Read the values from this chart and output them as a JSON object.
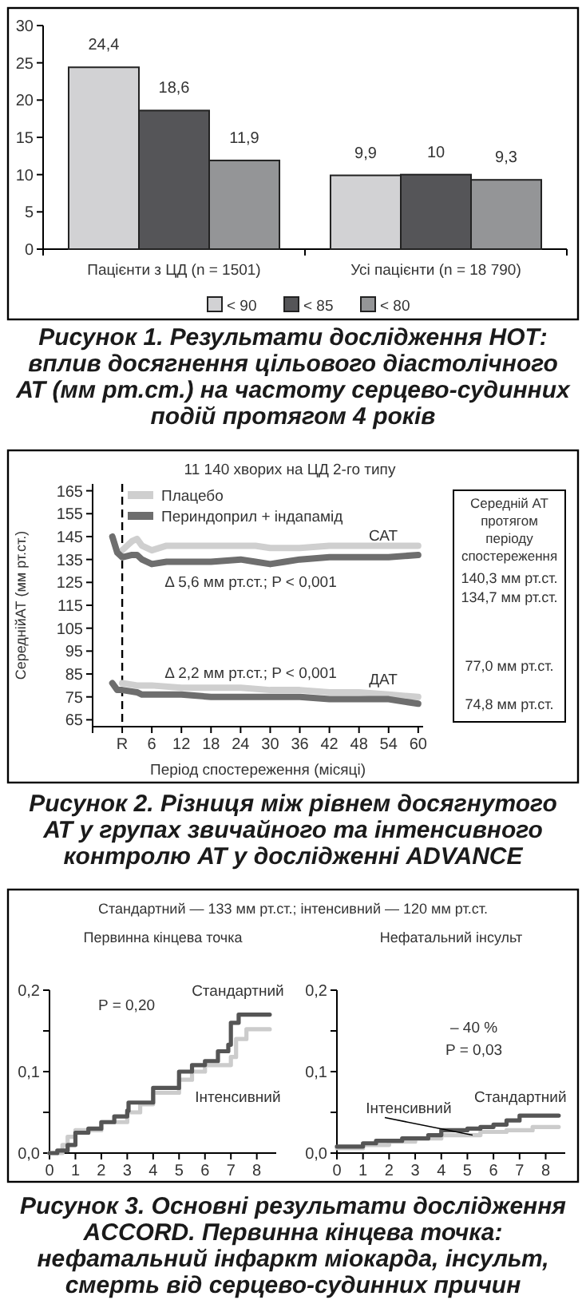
{
  "chart_data": [
    {
      "type": "bar",
      "title": "Рисунок 1. Результати дослідження НОТ: вплив досягнення цільового діастолічного АТ (мм рт.ст.) на частоту серцево-судинних подій протягом 4 років",
      "categories": [
        "Пацієнти з ЦД (n = 1501)",
        "Усі пацієнти (n = 18 790)"
      ],
      "series": [
        {
          "name": "< 90",
          "color": "#d2d2d4",
          "values": [
            24.4,
            9.9
          ],
          "value_labels": [
            "24,4",
            "9,9"
          ]
        },
        {
          "name": "< 85",
          "color": "#555558",
          "values": [
            18.6,
            10
          ],
          "value_labels": [
            "18,6",
            "10"
          ]
        },
        {
          "name": "< 80",
          "color": "#949597",
          "values": [
            11.9,
            9.3
          ],
          "value_labels": [
            "11,9",
            "9,3"
          ]
        }
      ],
      "ylim": [
        0,
        30
      ],
      "yticks": [
        0,
        5,
        10,
        15,
        20,
        25,
        30
      ],
      "legend": "bottom"
    },
    {
      "type": "line",
      "title": "Рисунок 2. Різниця між рівнем досягнутого АТ у групах звичайного та інтенсивного контролю АТ у дослідженні ADVANCE",
      "subtitle": "11 140 хворих на ЦД 2-го типу",
      "xlabel": "Період спостереження (місяці)",
      "ylabel": "СереднійАТ (мм рт.ст.)",
      "series": [
        {
          "name": "Плацебо",
          "color": "#cfcfcf",
          "x": [
            0,
            1,
            2,
            3,
            4,
            6,
            9,
            12,
            18,
            24,
            27,
            30,
            33,
            36,
            42,
            48,
            54,
            60
          ],
          "values": [
            139,
            141,
            143,
            144,
            141,
            139,
            141,
            141,
            141,
            141,
            141,
            140,
            140,
            140,
            141,
            141,
            141,
            141
          ]
        },
        {
          "name": "Периндоприл + індапамід",
          "color": "#6e6e6e",
          "x": [
            -2,
            -1,
            0,
            2,
            3,
            4,
            6,
            9,
            12,
            18,
            24,
            27,
            30,
            33,
            36,
            42,
            48,
            54,
            60
          ],
          "values": [
            145,
            138,
            136,
            137,
            137,
            135,
            133,
            134,
            134,
            134,
            135,
            134,
            133,
            134,
            135,
            136,
            136,
            136,
            137
          ]
        },
        {
          "color": "#cfcfcf",
          "x": [
            0,
            3,
            6,
            12,
            18,
            24,
            30,
            36,
            42,
            48,
            54,
            60
          ],
          "values": [
            81,
            80,
            80,
            79,
            79,
            79,
            78,
            78,
            77,
            77,
            76,
            75
          ]
        },
        {
          "color": "#6e6e6e",
          "x": [
            -2,
            -1,
            0,
            3,
            4,
            12,
            18,
            24,
            30,
            36,
            42,
            48,
            54,
            60
          ],
          "values": [
            81,
            78,
            78,
            77,
            76,
            76,
            75,
            75,
            75,
            75,
            74,
            74,
            74,
            72
          ]
        }
      ],
      "xlim": [
        -6,
        61
      ],
      "xticks": [
        {
          "value": -6,
          "label": null
        },
        {
          "value": 0,
          "label": "R"
        },
        6,
        12,
        18,
        24,
        30,
        36,
        42,
        48,
        54,
        60
      ],
      "ylim": [
        62,
        168
      ],
      "yticks": [
        65,
        75,
        85,
        95,
        105,
        115,
        125,
        135,
        145,
        155,
        165
      ],
      "ref_lines": [
        {
          "axis": "x",
          "value": 0,
          "color": "#000000",
          "line_style": "dashed"
        }
      ],
      "legend": "top left",
      "annotations": [
        "Δ 5,6 мм рт.ст.; P < 0,001",
        "Δ 2,2 мм рт.ст.; P < 0,001",
        "САТ",
        "ДАТ",
        "Середній АТ протягом періоду спостереження",
        "140,3 мм рт.ст.",
        "134,7 мм рт.ст.",
        "77,0 мм рт.ст.",
        "74,8 мм рт.ст."
      ]
    },
    {
      "type": "step",
      "title": "Первинна кінцева точка",
      "subtitle": "Стандартний — 133 мм рт.ст.; інтенсивний — 120 мм рт.ст.",
      "series": [
        {
          "name": "Інтенсивний",
          "color": "#cccccc",
          "x": [
            0,
            0.5,
            0.7,
            1,
            2,
            3,
            3.5,
            4,
            5,
            5.5,
            6,
            6.5,
            7,
            7.2,
            7.6,
            8.5
          ],
          "values": [
            0,
            0.01,
            0.02,
            0.028,
            0.038,
            0.05,
            0.06,
            0.074,
            0.09,
            0.1,
            0.108,
            0.108,
            0.118,
            0.14,
            0.152,
            0.152
          ]
        },
        {
          "name": "Стандартний",
          "color": "#555555",
          "x": [
            0,
            0.3,
            0.7,
            1,
            1.5,
            2,
            2.5,
            3,
            3.05,
            4,
            5,
            5.5,
            6,
            6.5,
            6.9,
            7,
            7.3,
            8.5
          ],
          "values": [
            0,
            0.003,
            0.01,
            0.025,
            0.03,
            0.038,
            0.045,
            0.052,
            0.062,
            0.08,
            0.1,
            0.108,
            0.113,
            0.125,
            0.133,
            0.16,
            0.17,
            0.17
          ]
        }
      ],
      "xlim": [
        0,
        8.75
      ],
      "xticks": [
        0,
        1,
        2,
        3,
        4,
        5,
        6,
        7,
        8
      ],
      "ylim": [
        0,
        0.2
      ],
      "yticks": [
        {
          "value": 0,
          "label": "0,0"
        },
        {
          "value": 0.05,
          "label": null
        },
        {
          "value": 0.1,
          "label": "0,1"
        },
        {
          "value": 0.15,
          "label": null
        },
        {
          "value": 0.2,
          "label": "0,2"
        }
      ],
      "annotations": [
        "Рисунок 3. Основні результати дослідження ACCORD. Первинна кінцева точка: нефатальний інфаркт міокарда, інсульт, смерть від серцево-судинних причин",
        "P = 0,20"
      ]
    },
    {
      "type": "step",
      "title": "Нефатальний інсульт",
      "series": [
        {
          "name": "Інтенсивний",
          "color": "#cccccc",
          "x": [
            0,
            1,
            2,
            3,
            4,
            5.2,
            5.5,
            6.5,
            7.5,
            8.5
          ],
          "values": [
            0.006,
            0.01,
            0.014,
            0.018,
            0.022,
            0.022,
            0.026,
            0.028,
            0.032,
            0.032
          ]
        },
        {
          "name": "Стандартний",
          "color": "#555555",
          "x": [
            0,
            0.7,
            1,
            1.5,
            2.5,
            3.5,
            4,
            5,
            5.5,
            6,
            6.5,
            7,
            8.5
          ],
          "values": [
            0.008,
            0.008,
            0.012,
            0.015,
            0.018,
            0.022,
            0.028,
            0.03,
            0.032,
            0.035,
            0.04,
            0.046,
            0.046
          ]
        }
      ],
      "xlim": [
        0,
        8.75
      ],
      "xticks": [
        0,
        1,
        2,
        3,
        4,
        5,
        6,
        7,
        8
      ],
      "ylim": [
        0,
        0.2
      ],
      "yticks": [
        {
          "value": 0,
          "label": "0,0"
        },
        {
          "value": 0.05,
          "label": null
        },
        {
          "value": 0.1,
          "label": "0,1"
        },
        {
          "value": 0.15,
          "label": null
        },
        {
          "value": 0.2,
          "label": "0,2"
        }
      ],
      "annotations": [
        "– 40 %",
        "P = 0,03"
      ]
    }
  ]
}
